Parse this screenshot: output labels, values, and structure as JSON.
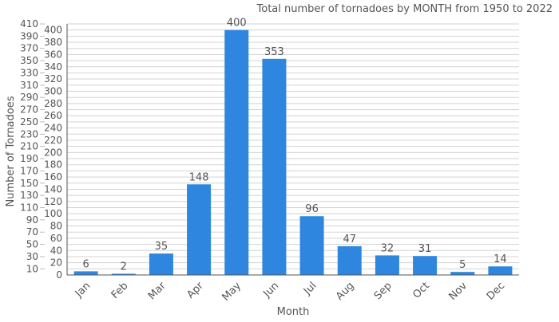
{
  "chart_data": {
    "type": "bar",
    "title": "Total number of tornadoes by MONTH from 1950 to 2022",
    "xlabel": "Month",
    "ylabel": "Number of Tornadoes",
    "categories": [
      "Jan",
      "Feb",
      "Mar",
      "Apr",
      "May",
      "Jun",
      "Jul",
      "Aug",
      "Sep",
      "Oct",
      "Nov",
      "Dec"
    ],
    "values": [
      6,
      2,
      35,
      148,
      400,
      353,
      96,
      47,
      32,
      31,
      5,
      14
    ],
    "ylim": [
      0,
      410
    ],
    "ytick_step": 10,
    "grid": true,
    "bar_color": "#2e86de",
    "legend": "none"
  }
}
